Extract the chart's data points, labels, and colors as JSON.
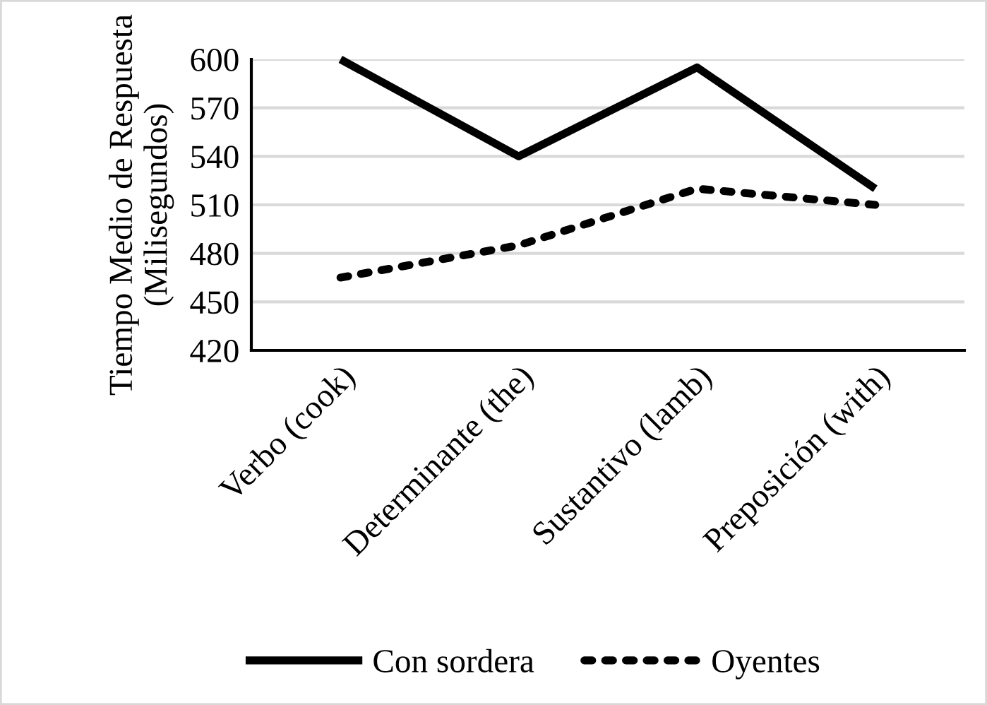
{
  "chart_data": {
    "type": "line",
    "ylabel": "Tiempo Medio de Respuesta\n(Milisegundos)",
    "categories": [
      "Verbo (cook)",
      "Determinante (the)",
      "Sustantivo (lamb)",
      "Preposición (with)"
    ],
    "series": [
      {
        "name": "Con sordera",
        "color": "#000000",
        "line_style": "solid",
        "values": [
          600,
          540,
          595,
          520
        ]
      },
      {
        "name": "Oyentes",
        "color": "#000000",
        "line_style": "dotted",
        "values": [
          465,
          485,
          520,
          510
        ]
      }
    ],
    "ylim": [
      420,
      600
    ],
    "yticks": [
      420,
      450,
      480,
      510,
      540,
      570,
      600
    ],
    "grid": "y",
    "legend": "bottom"
  }
}
